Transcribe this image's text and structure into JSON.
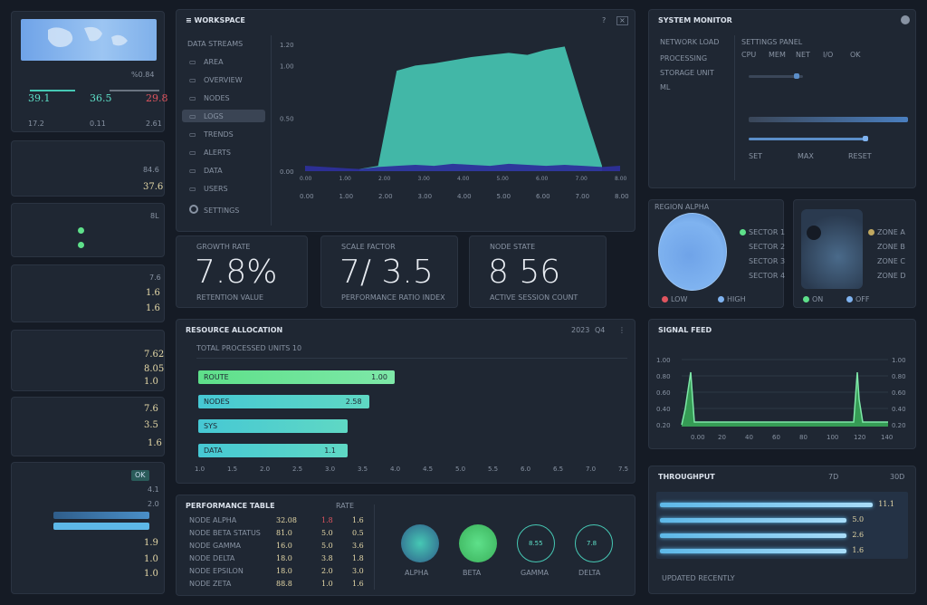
{
  "colors": {
    "bg": "#151b25",
    "panel": "#1f2733",
    "teal": "#46c8b4",
    "green": "#5ee08a",
    "blue": "#7fb3f0",
    "red": "#e0555f",
    "gold": "#e6d9a8"
  },
  "left": {
    "p1": {
      "tag": "%0.84",
      "k1": "39.1",
      "k2": "36.5",
      "k3": "29.8",
      "f1": "17.2",
      "f2": "0.11",
      "f3": "2.61"
    },
    "p2": {
      "v1": "84.6",
      "v2": "37.6"
    },
    "p3": {
      "v1": "8L"
    },
    "p4": {
      "v1": "7.6",
      "v2": "1.6",
      "v3": "1.6"
    },
    "p5": {
      "v1": "7.62",
      "v2": "8.05",
      "v3": "1.0"
    },
    "p6": {
      "v1": "7.6",
      "v2": "3.5",
      "v3": "1.6"
    },
    "p7": {
      "btn": "OK",
      "v1": "4.1",
      "v2": "2.0",
      "v3": "1.9",
      "v4": "1.0",
      "v5": "1.0"
    }
  },
  "chart_main": {
    "header": "≡ WORKSPACE",
    "nav_header": "DATA STREAMS",
    "nav": [
      "AREA",
      "OVERVIEW",
      "NODES",
      "LOGS",
      "TRENDS",
      "ALERTS",
      "DATA",
      "USERS"
    ],
    "nav_footer": "SETTINGS"
  },
  "chart_data": {
    "type": "area",
    "y_ticks": [
      "1.20",
      "1.00",
      "0.50",
      "0.00"
    ],
    "x_ticks": [
      "0.00",
      "1.00",
      "2.00",
      "3.00",
      "4.00",
      "5.00",
      "6.00",
      "7.00",
      "8.00"
    ],
    "ylim": [
      0,
      1.2
    ],
    "series": [
      {
        "values": [
          0.02,
          0.05,
          0.95,
          1.0,
          1.02,
          1.05,
          1.08,
          1.1,
          1.12,
          1.1,
          1.15,
          1.18,
          0.6,
          0.05
        ]
      },
      {
        "values": [
          0.02,
          0.04,
          0.05,
          0.06,
          0.05,
          0.07,
          0.06,
          0.05,
          0.07,
          0.06,
          0.05,
          0.06,
          0.05,
          0.04
        ]
      }
    ]
  },
  "kpis": [
    {
      "label": "GROWTH RATE",
      "value": "7.8%",
      "caption": "RETENTION VALUE"
    },
    {
      "label": "SCALE FACTOR",
      "value": "7/ 3.5",
      "caption": "PERFORMANCE RATIO INDEX"
    },
    {
      "label": "NODE STATE",
      "value": "8 56",
      "caption": "ACTIVE SESSION COUNT"
    }
  ],
  "hbar": {
    "title": "RESOURCE ALLOCATION",
    "subtitle": "TOTAL PROCESSED UNITS 10",
    "top_right": [
      "2023",
      "Q4",
      "⋮"
    ],
    "bars": [
      {
        "label": "ROUTE",
        "value": "1.00",
        "fill": 0.92
      },
      {
        "label": "NODES",
        "value": "2.58",
        "fill": 0.8
      },
      {
        "label": "SYS",
        "value": "",
        "fill": 0.7
      },
      {
        "label": "DATA",
        "value": "1.1",
        "fill": 0.7
      }
    ],
    "x_ticks": [
      "1.0",
      "1.5",
      "2.0",
      "2.5",
      "3.0",
      "3.5",
      "4.0",
      "4.5",
      "5.0",
      "5.5",
      "6.0",
      "6.5",
      "7.0",
      "7.5"
    ]
  },
  "table": {
    "title": "PERFORMANCE TABLE",
    "col": "RATE",
    "rows": [
      {
        "name": "NODE ALPHA",
        "a": "32.08",
        "b": "1.8",
        "c": "1.6"
      },
      {
        "name": "NODE BETA STATUS",
        "a": "81.0",
        "b": "5.0",
        "c": "0.5"
      },
      {
        "name": "NODE GAMMA",
        "a": "16.0",
        "b": "5.0",
        "c": "3.6"
      },
      {
        "name": "NODE DELTA",
        "a": "18.0",
        "b": "3.8",
        "c": "1.8"
      },
      {
        "name": "NODE EPSILON",
        "a": "18.0",
        "b": "2.0",
        "c": "3.0"
      },
      {
        "name": "NODE ZETA",
        "a": "88.8",
        "b": "1.0",
        "c": "1.6"
      }
    ],
    "circles": [
      {
        "label": "ALPHA",
        "text": ""
      },
      {
        "label": "BETA",
        "text": ""
      },
      {
        "label": "GAMMA",
        "text": "8.55"
      },
      {
        "label": "DELTA",
        "text": "7.8"
      }
    ]
  },
  "right_top": {
    "title": "SYSTEM MONITOR",
    "left_items": [
      "NETWORK LOAD",
      "PROCESSING",
      "STORAGE UNIT",
      "ML"
    ],
    "right_header": "SETTINGS PANEL",
    "right_sub": [
      "CPU",
      "MEM",
      "NET",
      "I/O",
      "OK"
    ],
    "right_footer": [
      "SET",
      "MAX",
      "RESET"
    ]
  },
  "circle_panel_a": {
    "title": "REGION ALPHA",
    "items": [
      "SECTOR 1",
      "SECTOR 2",
      "SECTOR 3",
      "SECTOR 4"
    ],
    "legend": [
      "LOW",
      "HIGH"
    ]
  },
  "circle_panel_b": {
    "items": [
      "ZONE A",
      "ZONE B",
      "ZONE C",
      "ZONE D"
    ],
    "legend": [
      "ON",
      "OFF"
    ]
  },
  "spike": {
    "title": "SIGNAL FEED",
    "y_ticks": [
      "1.00",
      "0.80",
      "0.60",
      "0.40",
      "0.20"
    ],
    "x_ticks": [
      "0.00",
      "20",
      "40",
      "60",
      "80",
      "100",
      "120",
      "140"
    ]
  },
  "right_bars": {
    "title": "THROUGHPUT",
    "header_right": [
      "7D",
      "30D"
    ],
    "rows": [
      {
        "value": "11.1",
        "fill": 0.98
      },
      {
        "value": "5.0",
        "fill": 0.86
      },
      {
        "value": "2.6",
        "fill": 0.86
      },
      {
        "value": "1.6",
        "fill": 0.86
      }
    ],
    "footer": "UPDATED RECENTLY"
  }
}
